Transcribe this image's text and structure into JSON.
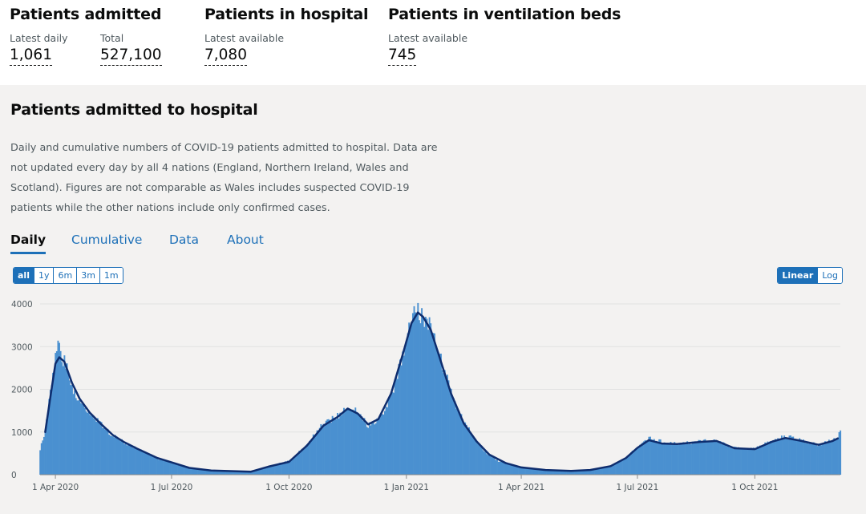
{
  "headlines": [
    {
      "title": "Patients admitted",
      "metrics": [
        {
          "label": "Latest daily",
          "value": "1,061"
        },
        {
          "label": "Total",
          "value": "527,100"
        }
      ]
    },
    {
      "title": "Patients in hospital",
      "metrics": [
        {
          "label": "Latest available",
          "value": "7,080"
        }
      ]
    },
    {
      "title": "Patients in ventilation beds",
      "metrics": [
        {
          "label": "Latest available",
          "value": "745"
        }
      ]
    }
  ],
  "card": {
    "title": "Patients admitted to hospital",
    "description": "Daily and cumulative numbers of COVID-19 patients admitted to hospital. Data are not updated every day by all 4 nations (England, Northern Ireland, Wales and Scotland). Figures are not comparable as Wales includes suspected COVID-19 patients while the other nations include only confirmed cases.",
    "tabs": [
      {
        "label": "Daily",
        "active": true
      },
      {
        "label": "Cumulative",
        "active": false
      },
      {
        "label": "Data",
        "active": false
      },
      {
        "label": "About",
        "active": false
      }
    ],
    "range_buttons": [
      {
        "label": "all",
        "active": true
      },
      {
        "label": "1y",
        "active": false
      },
      {
        "label": "6m",
        "active": false
      },
      {
        "label": "3m",
        "active": false
      },
      {
        "label": "1m",
        "active": false
      }
    ],
    "scale_buttons": [
      {
        "label": "Linear",
        "active": true
      },
      {
        "label": "Log",
        "active": false
      }
    ]
  },
  "chart_data": {
    "type": "bar",
    "title": "",
    "xlabel": "",
    "ylabel": "",
    "x_start": "2020-03-20",
    "x_end": "2021-12-07",
    "ylim": [
      0,
      4000
    ],
    "y_ticks": [
      0,
      1000,
      2000,
      3000,
      4000
    ],
    "x_ticks": [
      "1 Apr 2020",
      "1 Jul 2020",
      "1 Oct 2020",
      "1 Jan 2021",
      "1 Apr 2021",
      "1 Jul 2021",
      "1 Oct 2021"
    ],
    "x_tick_dates": [
      "2020-04-01",
      "2020-07-01",
      "2020-10-01",
      "2021-01-01",
      "2021-04-01",
      "2021-07-01",
      "2021-10-01"
    ],
    "grid": true,
    "colors": {
      "bars": "#4a90d0",
      "average": "#0e2d6e",
      "grid": "#e1e1e1"
    },
    "series": [
      {
        "type": "bar",
        "points": [
          [
            "2020-03-20",
            600
          ],
          [
            "2020-03-24",
            1000
          ],
          [
            "2020-03-28",
            1900
          ],
          [
            "2020-04-01",
            2700
          ],
          [
            "2020-04-03",
            3050
          ],
          [
            "2020-04-05",
            2800
          ],
          [
            "2020-04-09",
            2600
          ],
          [
            "2020-04-15",
            2000
          ],
          [
            "2020-04-20",
            1700
          ],
          [
            "2020-04-27",
            1450
          ],
          [
            "2020-05-05",
            1250
          ],
          [
            "2020-05-14",
            950
          ],
          [
            "2020-05-25",
            750
          ],
          [
            "2020-06-05",
            600
          ],
          [
            "2020-06-14",
            480
          ],
          [
            "2020-06-20",
            380
          ],
          [
            "2020-07-01",
            280
          ],
          [
            "2020-07-15",
            150
          ],
          [
            "2020-08-01",
            100
          ],
          [
            "2020-09-01",
            80
          ],
          [
            "2020-09-15",
            200
          ],
          [
            "2020-10-01",
            320
          ],
          [
            "2020-10-15",
            700
          ],
          [
            "2020-10-28",
            1200
          ],
          [
            "2020-11-10",
            1400
          ],
          [
            "2020-11-16",
            1600
          ],
          [
            "2020-11-24",
            1450
          ],
          [
            "2020-12-02",
            1150
          ],
          [
            "2020-12-12",
            1350
          ],
          [
            "2020-12-22",
            2000
          ],
          [
            "2020-12-31",
            3000
          ],
          [
            "2021-01-05",
            3700
          ],
          [
            "2021-01-09",
            4000
          ],
          [
            "2021-01-12",
            3750
          ],
          [
            "2021-01-18",
            3600
          ],
          [
            "2021-01-25",
            3000
          ],
          [
            "2021-02-01",
            2300
          ],
          [
            "2021-02-10",
            1500
          ],
          [
            "2021-02-22",
            900
          ],
          [
            "2021-03-05",
            500
          ],
          [
            "2021-03-15",
            300
          ],
          [
            "2021-04-01",
            180
          ],
          [
            "2021-04-20",
            120
          ],
          [
            "2021-05-10",
            100
          ],
          [
            "2021-05-25",
            120
          ],
          [
            "2021-06-10",
            200
          ],
          [
            "2021-06-22",
            400
          ],
          [
            "2021-07-01",
            650
          ],
          [
            "2021-07-10",
            850
          ],
          [
            "2021-07-20",
            780
          ],
          [
            "2021-08-01",
            720
          ],
          [
            "2021-08-20",
            780
          ],
          [
            "2021-09-01",
            800
          ],
          [
            "2021-09-15",
            620
          ],
          [
            "2021-10-01",
            600
          ],
          [
            "2021-10-15",
            800
          ],
          [
            "2021-10-25",
            900
          ],
          [
            "2021-11-05",
            820
          ],
          [
            "2021-11-20",
            700
          ],
          [
            "2021-12-01",
            820
          ],
          [
            "2021-12-05",
            900
          ],
          [
            "2021-12-07",
            1061
          ]
        ]
      },
      {
        "type": "line",
        "points": [
          [
            "2020-03-24",
            1000
          ],
          [
            "2020-03-28",
            1800
          ],
          [
            "2020-04-01",
            2600
          ],
          [
            "2020-04-04",
            2750
          ],
          [
            "2020-04-08",
            2650
          ],
          [
            "2020-04-14",
            2150
          ],
          [
            "2020-04-20",
            1780
          ],
          [
            "2020-04-28",
            1450
          ],
          [
            "2020-05-07",
            1180
          ],
          [
            "2020-05-16",
            930
          ],
          [
            "2020-05-25",
            760
          ],
          [
            "2020-06-04",
            610
          ],
          [
            "2020-06-12",
            500
          ],
          [
            "2020-06-20",
            390
          ],
          [
            "2020-07-01",
            290
          ],
          [
            "2020-07-15",
            160
          ],
          [
            "2020-08-01",
            100
          ],
          [
            "2020-09-01",
            70
          ],
          [
            "2020-09-15",
            190
          ],
          [
            "2020-10-01",
            300
          ],
          [
            "2020-10-15",
            680
          ],
          [
            "2020-10-28",
            1150
          ],
          [
            "2020-11-08",
            1350
          ],
          [
            "2020-11-16",
            1550
          ],
          [
            "2020-11-24",
            1430
          ],
          [
            "2020-12-02",
            1180
          ],
          [
            "2020-12-10",
            1300
          ],
          [
            "2020-12-20",
            1900
          ],
          [
            "2020-12-29",
            2800
          ],
          [
            "2021-01-05",
            3550
          ],
          [
            "2021-01-10",
            3800
          ],
          [
            "2021-01-14",
            3700
          ],
          [
            "2021-01-20",
            3400
          ],
          [
            "2021-01-27",
            2750
          ],
          [
            "2021-02-05",
            1900
          ],
          [
            "2021-02-15",
            1200
          ],
          [
            "2021-02-25",
            780
          ],
          [
            "2021-03-07",
            470
          ],
          [
            "2021-03-20",
            270
          ],
          [
            "2021-04-01",
            170
          ],
          [
            "2021-04-20",
            110
          ],
          [
            "2021-05-10",
            90
          ],
          [
            "2021-05-25",
            110
          ],
          [
            "2021-06-10",
            200
          ],
          [
            "2021-06-22",
            390
          ],
          [
            "2021-07-01",
            630
          ],
          [
            "2021-07-10",
            810
          ],
          [
            "2021-07-20",
            730
          ],
          [
            "2021-08-01",
            720
          ],
          [
            "2021-08-20",
            770
          ],
          [
            "2021-09-01",
            790
          ],
          [
            "2021-09-15",
            620
          ],
          [
            "2021-10-01",
            600
          ],
          [
            "2021-10-15",
            780
          ],
          [
            "2021-10-25",
            860
          ],
          [
            "2021-11-05",
            800
          ],
          [
            "2021-11-20",
            700
          ],
          [
            "2021-12-01",
            790
          ],
          [
            "2021-12-05",
            850
          ]
        ]
      }
    ]
  }
}
